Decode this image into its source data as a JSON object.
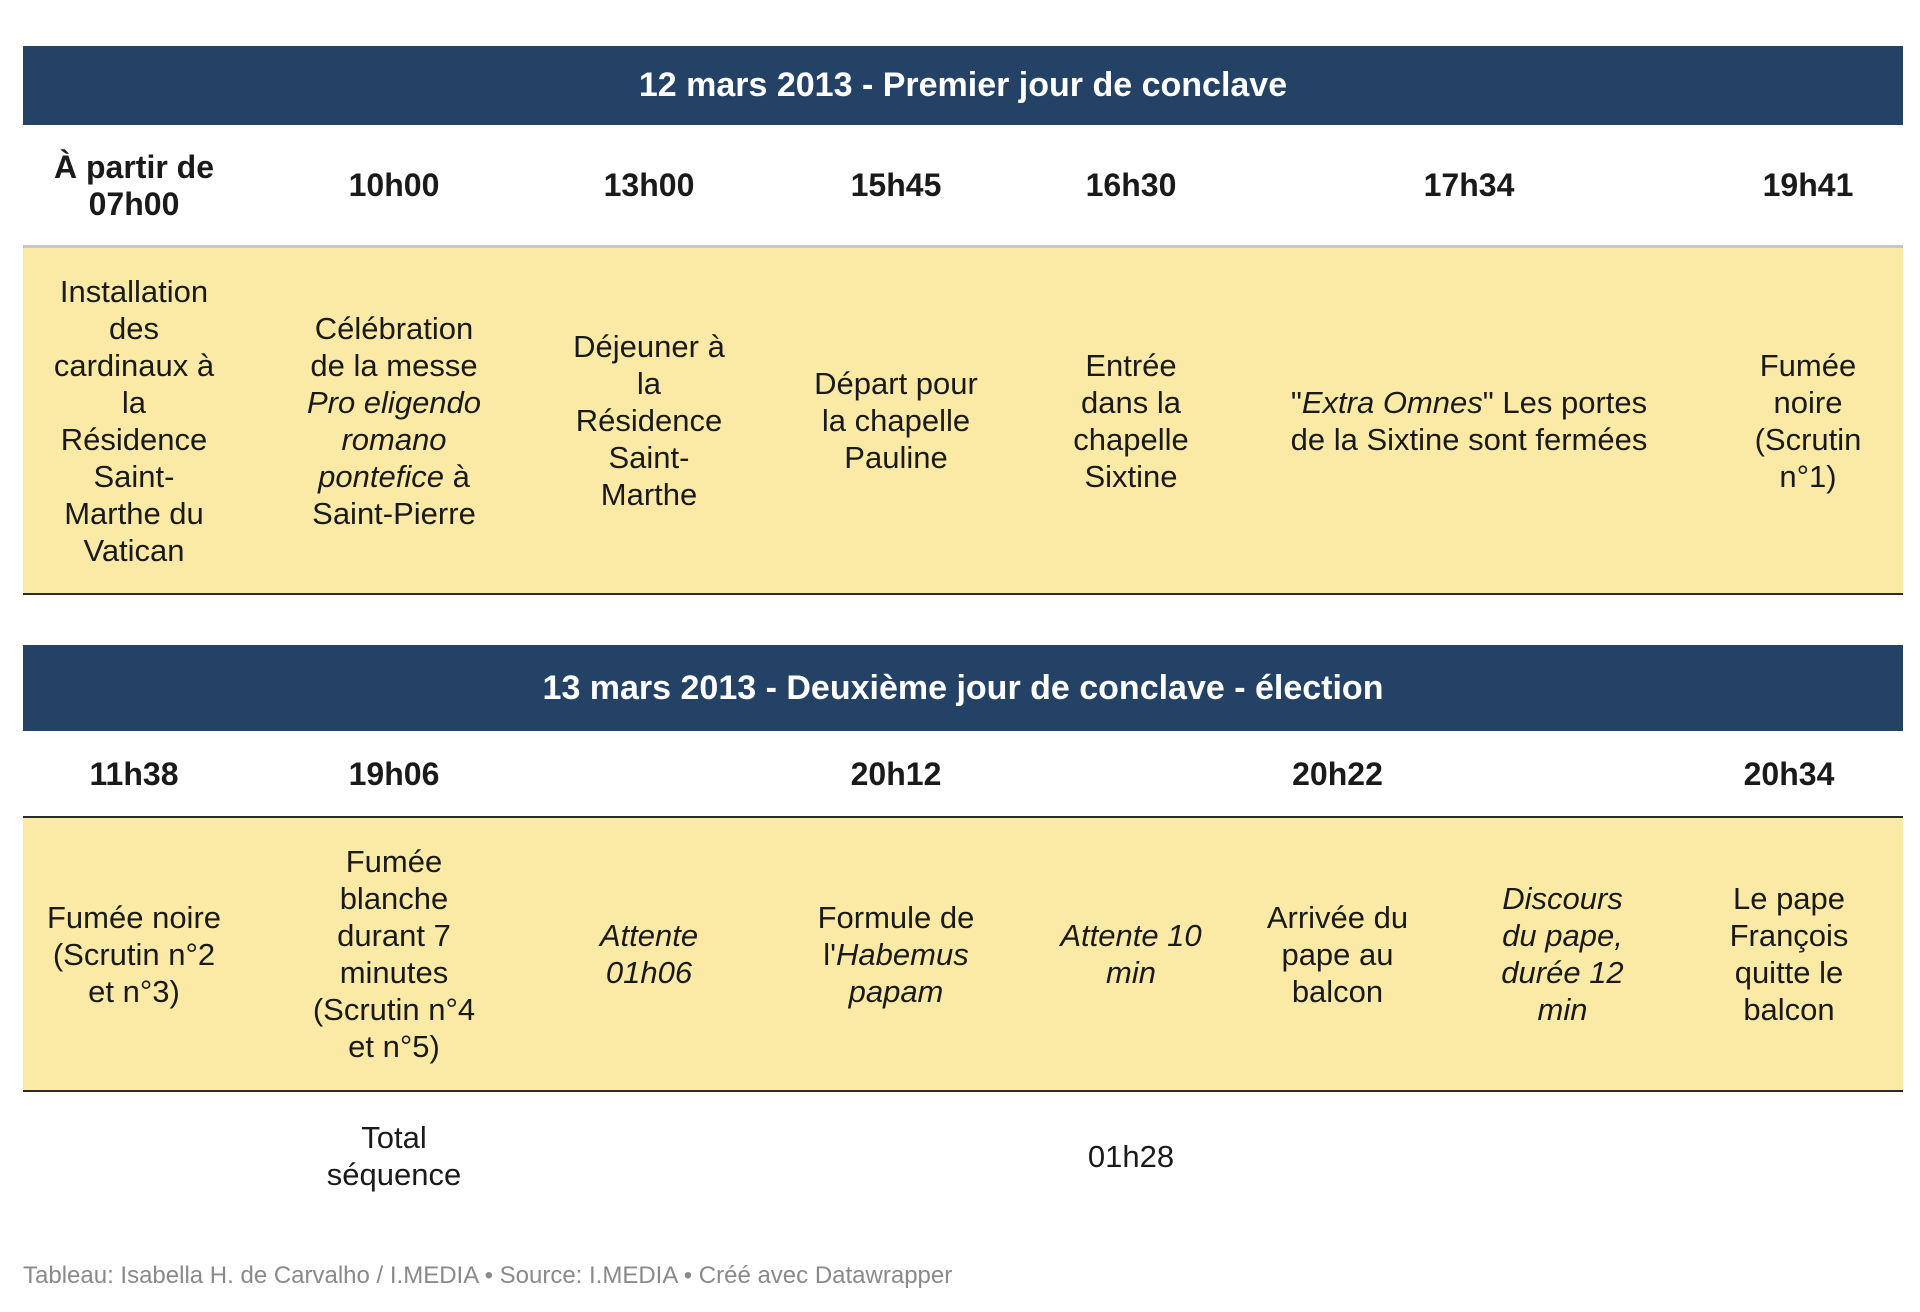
{
  "day1": {
    "title": "12 mars 2013 - Premier jour de conclave",
    "times": [
      "À partir de\n07h00",
      "10h00",
      "13h00",
      "15h45",
      "16h30",
      "17h34",
      "19h41"
    ],
    "events": [
      {
        "plain": "Installation\ndes\ncardinaux à\nla\nRésidence\nSaint-\nMarthe du\nVatican"
      },
      {
        "before": "Célébration\nde la messe\n",
        "italic": "Pro eligendo\nromano\npontefice",
        "after": " à\nSaint-Pierre"
      },
      {
        "plain": "Déjeuner à\nla\nRésidence\nSaint-\nMarthe"
      },
      {
        "plain": "Départ pour\nla chapelle\nPauline"
      },
      {
        "plain": "Entrée\ndans la\nchapelle\nSixtine"
      },
      {
        "before": "\"",
        "italic": "Extra Omnes",
        "after": "\" Les portes\nde la Sixtine sont fermées"
      },
      {
        "plain": "Fumée\nnoire\n(Scrutin\nn°1)"
      }
    ]
  },
  "day2": {
    "title": "13 mars 2013 - Deuxième jour de conclave - élection",
    "times": [
      "11h38",
      "19h06",
      "20h12",
      "20h22",
      "20h34"
    ],
    "events": [
      {
        "plain": "Fumée noire\n(Scrutin n°2\net n°3)"
      },
      {
        "plain": "Fumée\nblanche\ndurant 7\nminutes\n(Scrutin n°4\net n°5)"
      },
      {
        "italic": "Attente\n01h06"
      },
      {
        "before": "Formule de\nl'",
        "italic": "Habemus\npapam",
        "after": ""
      },
      {
        "italic": "Attente 10\nmin"
      },
      {
        "plain": "Arrivée du\npape au\nbalcon"
      },
      {
        "italic": "Discours\ndu pape,\ndurée 12\nmin"
      },
      {
        "plain": "Le pape\nFrançois\nquitte le\nbalcon"
      }
    ],
    "total_label": "Total\nséquence",
    "total_value": "01h28"
  },
  "footer": "Tableau: Isabella H. de Carvalho / I.MEDIA • Source: I.MEDIA • Créé avec Datawrapper",
  "colors": {
    "header_bg": "#244265",
    "highlight_bg": "#fbeaa5"
  }
}
